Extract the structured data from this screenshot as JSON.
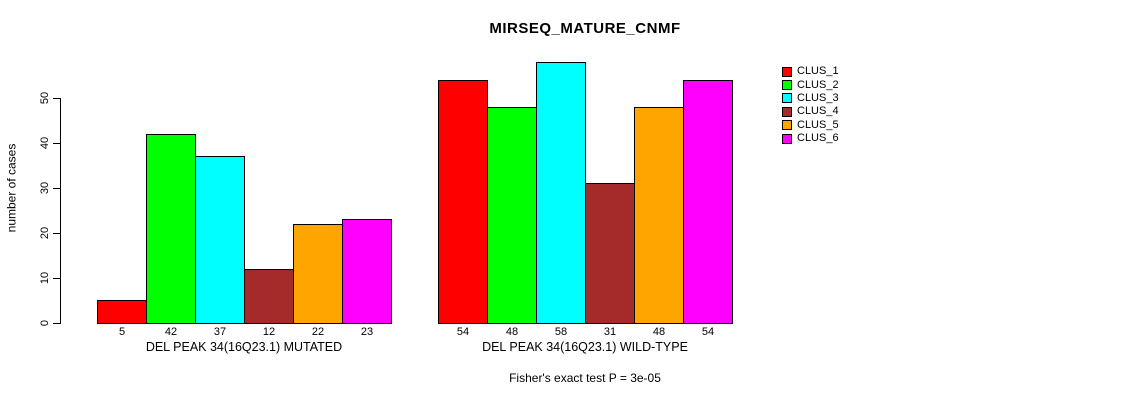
{
  "chart_data": {
    "type": "bar",
    "title": "MIRSEQ_MATURE_CNMF",
    "ylabel": "number of cases",
    "yticks": [
      0,
      10,
      20,
      30,
      40,
      50
    ],
    "ylim": [
      0,
      58
    ],
    "grid": false,
    "legend_position": "right",
    "legend": [
      {
        "label": "CLUS_1",
        "color": "#ff0000"
      },
      {
        "label": "CLUS_2",
        "color": "#00ff00"
      },
      {
        "label": "CLUS_3",
        "color": "#00ffff"
      },
      {
        "label": "CLUS_4",
        "color": "#a52a2a"
      },
      {
        "label": "CLUS_5",
        "color": "#ffa500"
      },
      {
        "label": "CLUS_6",
        "color": "#ff00ff"
      }
    ],
    "panels": [
      {
        "xlabel": "DEL PEAK 34(16Q23.1) MUTATED",
        "bar_labels": [
          "5",
          "42",
          "37",
          "12",
          "22",
          "23"
        ],
        "values": [
          5,
          42,
          37,
          12,
          22,
          23
        ]
      },
      {
        "xlabel": "DEL PEAK 34(16Q23.1) WILD-TYPE",
        "bar_labels": [
          "54",
          "48",
          "58",
          "31",
          "48",
          "54"
        ],
        "values": [
          54,
          48,
          58,
          31,
          48,
          54
        ]
      }
    ],
    "footnote": "Fisher's exact test P = 3e-05"
  }
}
